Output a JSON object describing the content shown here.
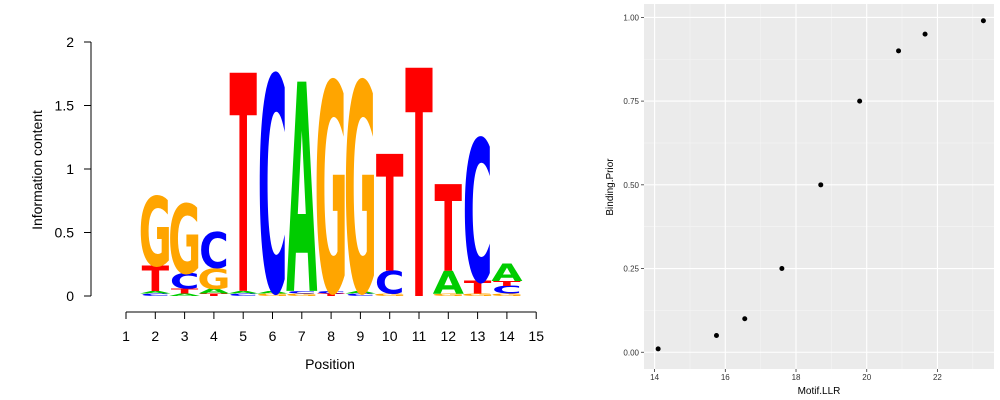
{
  "chart_data": [
    {
      "type": "sequence-logo",
      "ylabel": "Information content",
      "xlabel": "Position",
      "yticks": [
        "0",
        "0.5",
        "1",
        "1.5",
        "2"
      ],
      "xticks": [
        "1",
        "2",
        "3",
        "4",
        "5",
        "6",
        "7",
        "8",
        "9",
        "10",
        "11",
        "12",
        "13",
        "14",
        "15"
      ],
      "ylim": [
        0,
        2
      ],
      "colors": {
        "A": "#00cc00",
        "C": "#0000ff",
        "G": "#ffa500",
        "T": "#ff0000"
      },
      "columns": [
        {
          "position": 2,
          "stack": [
            {
              "letter": "C",
              "h": 0.02
            },
            {
              "letter": "A",
              "h": 0.02
            },
            {
              "letter": "T",
              "h": 0.2
            },
            {
              "letter": "G",
              "h": 0.55
            }
          ]
        },
        {
          "position": 3,
          "stack": [
            {
              "letter": "A",
              "h": 0.02
            },
            {
              "letter": "T",
              "h": 0.04
            },
            {
              "letter": "C",
              "h": 0.12
            },
            {
              "letter": "G",
              "h": 0.55
            }
          ]
        },
        {
          "position": 4,
          "stack": [
            {
              "letter": "T",
              "h": 0.02
            },
            {
              "letter": "A",
              "h": 0.04
            },
            {
              "letter": "G",
              "h": 0.16
            },
            {
              "letter": "C",
              "h": 0.28
            }
          ]
        },
        {
          "position": 5,
          "stack": [
            {
              "letter": "C",
              "h": 0.02
            },
            {
              "letter": "A",
              "h": 0.02
            },
            {
              "letter": "T",
              "h": 1.72
            }
          ]
        },
        {
          "position": 6,
          "stack": [
            {
              "letter": "G",
              "h": 0.02
            },
            {
              "letter": "A",
              "h": 0.02
            },
            {
              "letter": "C",
              "h": 1.7
            }
          ]
        },
        {
          "position": 7,
          "stack": [
            {
              "letter": "G",
              "h": 0.02
            },
            {
              "letter": "C",
              "h": 0.02
            },
            {
              "letter": "A",
              "h": 1.65
            }
          ]
        },
        {
          "position": 8,
          "stack": [
            {
              "letter": "T",
              "h": 0.02
            },
            {
              "letter": "C",
              "h": 0.02
            },
            {
              "letter": "G",
              "h": 1.65
            }
          ]
        },
        {
          "position": 9,
          "stack": [
            {
              "letter": "C",
              "h": 0.02
            },
            {
              "letter": "A",
              "h": 0.02
            },
            {
              "letter": "G",
              "h": 1.65
            }
          ]
        },
        {
          "position": 10,
          "stack": [
            {
              "letter": "G",
              "h": 0.02
            },
            {
              "letter": "C",
              "h": 0.18
            },
            {
              "letter": "T",
              "h": 0.92
            }
          ]
        },
        {
          "position": 11,
          "stack": [
            {
              "letter": "T",
              "h": 1.8
            }
          ]
        },
        {
          "position": 12,
          "stack": [
            {
              "letter": "G",
              "h": 0.02
            },
            {
              "letter": "A",
              "h": 0.18
            },
            {
              "letter": "T",
              "h": 0.68
            }
          ]
        },
        {
          "position": 13,
          "stack": [
            {
              "letter": "G",
              "h": 0.02
            },
            {
              "letter": "T",
              "h": 0.1
            },
            {
              "letter": "C",
              "h": 1.12
            }
          ]
        },
        {
          "position": 14,
          "stack": [
            {
              "letter": "G",
              "h": 0.02
            },
            {
              "letter": "C",
              "h": 0.06
            },
            {
              "letter": "T",
              "h": 0.04
            },
            {
              "letter": "A",
              "h": 0.14
            }
          ]
        }
      ]
    },
    {
      "type": "scatter",
      "xlabel": "Motif.LLR",
      "ylabel": "Binding.Prior",
      "xlim": [
        13.7,
        23.6
      ],
      "ylim": [
        -0.05,
        1.04
      ],
      "xticks": [
        14,
        16,
        18,
        20,
        22
      ],
      "xtick_labels": [
        "14",
        "16",
        "18",
        "20",
        "22"
      ],
      "yticks": [
        0,
        0.25,
        0.5,
        0.75,
        1
      ],
      "ytick_labels": [
        "0.00",
        "0.25",
        "0.50",
        "0.75",
        "1.00"
      ],
      "grid": true,
      "background": "#ebebeb",
      "points": [
        {
          "x": 14.1,
          "y": 0.01
        },
        {
          "x": 15.75,
          "y": 0.05
        },
        {
          "x": 16.55,
          "y": 0.1
        },
        {
          "x": 17.6,
          "y": 0.25
        },
        {
          "x": 18.7,
          "y": 0.5
        },
        {
          "x": 19.8,
          "y": 0.75
        },
        {
          "x": 20.9,
          "y": 0.9
        },
        {
          "x": 21.65,
          "y": 0.95
        },
        {
          "x": 23.3,
          "y": 0.99
        }
      ]
    }
  ]
}
